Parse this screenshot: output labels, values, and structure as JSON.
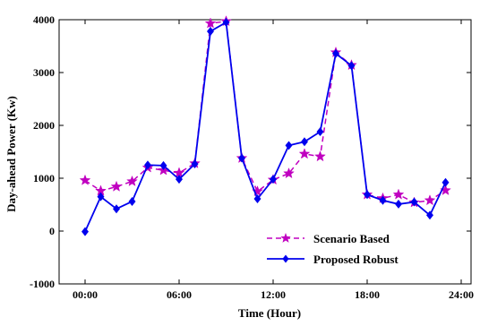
{
  "chart_data": {
    "type": "line",
    "title": "",
    "xlabel": "Time (Hour)",
    "ylabel": "Day-ahead Power (Kw)",
    "xlim": [
      0,
      24
    ],
    "ylim": [
      -1000,
      4000
    ],
    "x_ticks": [
      0,
      6,
      12,
      18,
      24
    ],
    "x_tick_labels": [
      "00:00",
      "06:00",
      "12:00",
      "18:00",
      "24:00"
    ],
    "y_ticks": [
      -1000,
      0,
      1000,
      2000,
      3000,
      4000
    ],
    "y_tick_labels": [
      "-1000",
      "0",
      "1000",
      "2000",
      "3000",
      "4000"
    ],
    "grid": false,
    "legend_position": "bottom-right",
    "x": [
      0,
      1,
      2,
      3,
      4,
      5,
      6,
      7,
      8,
      9,
      10,
      11,
      12,
      13,
      14,
      15,
      16,
      17,
      18,
      19,
      20,
      21,
      22,
      23,
      24
    ],
    "series": [
      {
        "name": "Scenario Based",
        "color": "#c000c0",
        "line_style": "dashed",
        "marker": "star",
        "values": [
          960,
          760,
          840,
          940,
          1200,
          1150,
          1100,
          1280,
          3930,
          3970,
          1380,
          750,
          970,
          1090,
          1460,
          1410,
          3380,
          3140,
          690,
          620,
          690,
          540,
          580,
          770,
          null
        ]
      },
      {
        "name": "Proposed Robust",
        "color": "#0000ee",
        "line_style": "solid",
        "marker": "diamond",
        "values": [
          -10,
          650,
          420,
          560,
          1250,
          1240,
          980,
          1270,
          3780,
          3950,
          1380,
          610,
          980,
          1620,
          1690,
          1880,
          3360,
          3130,
          690,
          580,
          510,
          550,
          300,
          920,
          null
        ]
      }
    ]
  }
}
